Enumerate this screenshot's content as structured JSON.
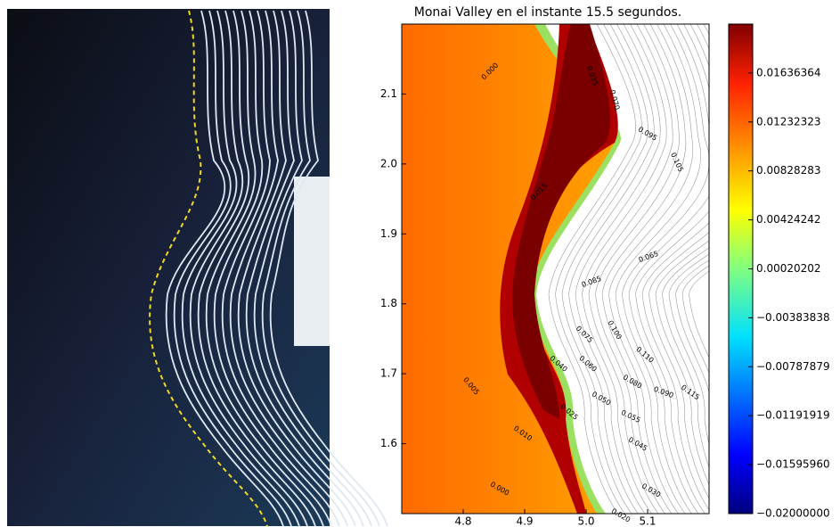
{
  "chart_data": {
    "type": "contour",
    "title": "Monai Valley en el instante 15.5 segundos.",
    "xlim": [
      4.7,
      5.2
    ],
    "ylim": [
      1.5,
      2.2
    ],
    "xticks": [
      4.8,
      4.9,
      {
        "value": 5,
        "label": "5.0"
      },
      5.1
    ],
    "yticks": [
      1.6,
      1.7,
      1.8,
      1.9,
      {
        "value": 2,
        "label": "2.0"
      },
      2.1
    ],
    "clim": [
      -0.02,
      0.0204
    ],
    "cticks": [
      0.01636364,
      0.01232323,
      0.00828283,
      0.00424242,
      0.00020202,
      {
        "value": -0.00383838,
        "label": "−0.00383838"
      },
      {
        "value": -0.00787879,
        "label": "−0.00787879"
      },
      {
        "value": -0.01191919,
        "label": "−0.01191919"
      },
      {
        "value": -0.0159596,
        "label": "−0.01595960"
      },
      {
        "value": -0.02,
        "label": "−0.02000000"
      }
    ],
    "contour_labels": [
      "0.000",
      "0.035",
      "0.070",
      "0.095",
      "0.105",
      "0.015",
      "0.065",
      "0.085",
      "0.075",
      "0.100",
      "0.110",
      "0.040",
      "0.060",
      "0.080",
      "0.090",
      "0.115",
      "0.005",
      "0.050",
      "0.055",
      "0.025",
      "0.010",
      "0.045",
      "0.000",
      "0.020",
      "0.030"
    ]
  }
}
